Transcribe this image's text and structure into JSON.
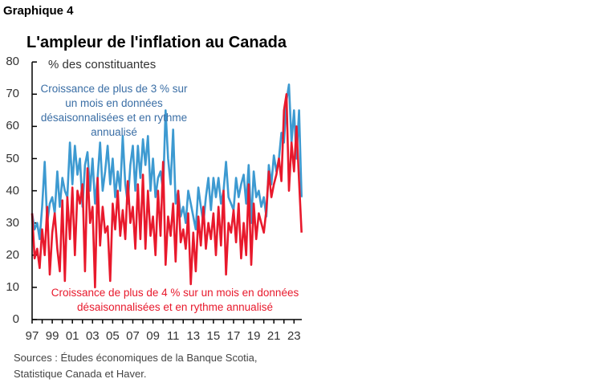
{
  "header": {
    "label": "Graphique 4"
  },
  "chart_data": {
    "type": "line",
    "title": "L'ampleur de l'inflation au Canada",
    "ylabel": "% des constituantes",
    "ylim": [
      0,
      80
    ],
    "yticks": [
      "0",
      "10",
      "20",
      "30",
      "40",
      "50",
      "60",
      "70",
      "80"
    ],
    "xticks": [
      "97",
      "99",
      "01",
      "03",
      "05",
      "07",
      "09",
      "11",
      "13",
      "15",
      "17",
      "19",
      "21",
      "23"
    ],
    "xlim": [
      1997,
      2023.8
    ],
    "grid": false,
    "series": [
      {
        "name": "Croissance de plus de 3 % sur un mois en données désaisonnalisées et en rythme annualisé",
        "color": "#3d9ad1",
        "start": 1997.0,
        "frequency": "quarterly",
        "values": [
          33,
          28,
          30,
          25,
          35,
          49,
          30,
          36,
          38,
          33,
          46,
          35,
          44,
          40,
          38,
          55,
          42,
          54,
          45,
          50,
          35,
          48,
          52,
          40,
          50,
          36,
          44,
          55,
          40,
          46,
          54,
          42,
          50,
          38,
          46,
          40,
          57,
          42,
          36,
          48,
          54,
          40,
          54,
          44,
          56,
          48,
          57,
          40,
          50,
          38,
          44,
          46,
          40,
          65,
          50,
          42,
          59,
          36,
          40,
          32,
          35,
          30,
          40,
          36,
          32,
          28,
          41,
          35,
          30,
          38,
          44,
          34,
          44,
          38,
          44,
          36,
          40,
          49,
          38,
          36,
          34,
          44,
          38,
          42,
          45,
          36,
          48,
          30,
          46,
          38,
          40,
          35,
          38,
          32,
          48,
          42,
          51,
          46,
          50,
          58,
          55,
          68,
          73,
          55,
          65,
          50,
          65,
          38
        ]
      },
      {
        "name": "Croissance de plus de 4 % sur un mois en données désaisonnalisées et en rythme annualisé",
        "color": "#e8192c",
        "start": 1997.0,
        "frequency": "quarterly",
        "values": [
          33,
          19,
          22,
          16,
          28,
          20,
          35,
          14,
          27,
          33,
          22,
          15,
          37,
          12,
          38,
          25,
          41,
          20,
          40,
          36,
          42,
          15,
          47,
          30,
          35,
          10,
          44,
          23,
          35,
          27,
          29,
          12,
          36,
          28,
          40,
          26,
          34,
          25,
          43,
          30,
          35,
          22,
          42,
          25,
          45,
          22,
          40,
          26,
          32,
          20,
          40,
          26,
          49,
          17,
          32,
          26,
          36,
          18,
          40,
          24,
          28,
          22,
          33,
          11,
          27,
          15,
          32,
          23,
          35,
          22,
          30,
          25,
          33,
          20,
          35,
          23,
          40,
          14,
          30,
          27,
          34,
          24,
          36,
          19,
          30,
          20,
          42,
          17,
          36,
          25,
          33,
          30,
          27,
          34,
          46,
          38,
          42,
          45,
          50,
          43,
          65,
          70,
          40,
          55,
          46,
          60,
          43,
          27
        ]
      }
    ],
    "annotations": {
      "blue": "Croissance de plus de 3 % sur un mois en données désaisonnalisées et en rythme annualisé",
      "red": "Croissance de plus de 4 % sur un mois en données désaisonnalisées et en rythme annualisé"
    }
  },
  "footer": {
    "sources": "Sources : Études économiques de la Banque Scotia, Statistique Canada et Haver."
  }
}
